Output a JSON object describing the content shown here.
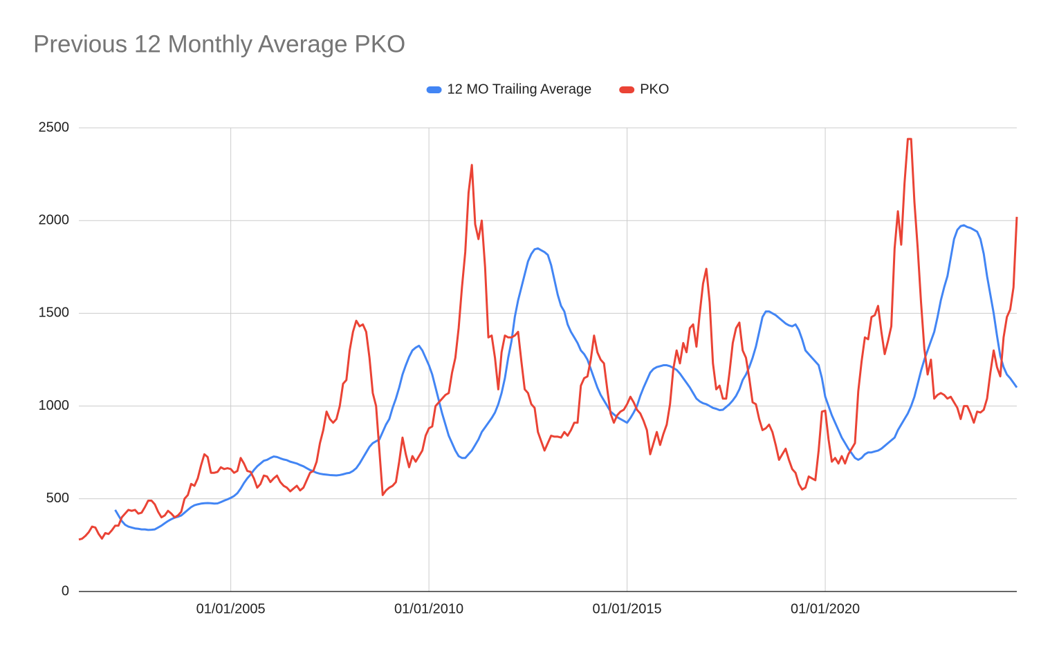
{
  "chart_data": {
    "type": "line",
    "title": "Previous 12 Monthly Average PKO",
    "legend": "top",
    "grid": true,
    "ylim": [
      0,
      2500
    ],
    "yticks": [
      0,
      500,
      1000,
      1500,
      2000,
      2500
    ],
    "xlim": [
      "03/01/2001",
      "11/01/2024"
    ],
    "xticks": [
      "01/01/2005",
      "01/01/2010",
      "01/01/2015",
      "01/01/2020"
    ],
    "x": [
      "03/01/2001",
      "04/01/2001",
      "05/01/2001",
      "06/01/2001",
      "07/01/2001",
      "08/01/2001",
      "09/01/2001",
      "10/01/2001",
      "11/01/2001",
      "12/01/2001",
      "01/01/2002",
      "02/01/2002",
      "03/01/2002",
      "04/01/2002",
      "05/01/2002",
      "06/01/2002",
      "07/01/2002",
      "08/01/2002",
      "09/01/2002",
      "10/01/2002",
      "11/01/2002",
      "12/01/2002",
      "01/01/2003",
      "02/01/2003",
      "03/01/2003",
      "04/01/2003",
      "05/01/2003",
      "06/01/2003",
      "07/01/2003",
      "08/01/2003",
      "09/01/2003",
      "10/01/2003",
      "11/01/2003",
      "12/01/2003",
      "01/01/2004",
      "02/01/2004",
      "03/01/2004",
      "04/01/2004",
      "05/01/2004",
      "06/01/2004",
      "07/01/2004",
      "08/01/2004",
      "09/01/2004",
      "10/01/2004",
      "11/01/2004",
      "12/01/2004",
      "01/01/2005",
      "02/01/2005",
      "03/01/2005",
      "04/01/2005",
      "05/01/2005",
      "06/01/2005",
      "07/01/2005",
      "08/01/2005",
      "09/01/2005",
      "10/01/2005",
      "11/01/2005",
      "12/01/2005",
      "01/01/2006",
      "02/01/2006",
      "03/01/2006",
      "04/01/2006",
      "05/01/2006",
      "06/01/2006",
      "07/01/2006",
      "08/01/2006",
      "09/01/2006",
      "10/01/2006",
      "11/01/2006",
      "12/01/2006",
      "01/01/2007",
      "02/01/2007",
      "03/01/2007",
      "04/01/2007",
      "05/01/2007",
      "06/01/2007",
      "07/01/2007",
      "08/01/2007",
      "09/01/2007",
      "10/01/2007",
      "11/01/2007",
      "12/01/2007",
      "01/01/2008",
      "02/01/2008",
      "03/01/2008",
      "04/01/2008",
      "05/01/2008",
      "06/01/2008",
      "07/01/2008",
      "08/01/2008",
      "09/01/2008",
      "10/01/2008",
      "11/01/2008",
      "12/01/2008",
      "01/01/2009",
      "02/01/2009",
      "03/01/2009",
      "04/01/2009",
      "05/01/2009",
      "06/01/2009",
      "07/01/2009",
      "08/01/2009",
      "09/01/2009",
      "10/01/2009",
      "11/01/2009",
      "12/01/2009",
      "01/01/2010",
      "02/01/2010",
      "03/01/2010",
      "04/01/2010",
      "05/01/2010",
      "06/01/2010",
      "07/01/2010",
      "08/01/2010",
      "09/01/2010",
      "10/01/2010",
      "11/01/2010",
      "12/01/2010",
      "01/01/2011",
      "02/01/2011",
      "03/01/2011",
      "04/01/2011",
      "05/01/2011",
      "06/01/2011",
      "07/01/2011",
      "08/01/2011",
      "09/01/2011",
      "10/01/2011",
      "11/01/2011",
      "12/01/2011",
      "01/01/2012",
      "02/01/2012",
      "03/01/2012",
      "04/01/2012",
      "05/01/2012",
      "06/01/2012",
      "07/01/2012",
      "08/01/2012",
      "09/01/2012",
      "10/01/2012",
      "11/01/2012",
      "12/01/2012",
      "01/01/2013",
      "02/01/2013",
      "03/01/2013",
      "04/01/2013",
      "05/01/2013",
      "06/01/2013",
      "07/01/2013",
      "08/01/2013",
      "09/01/2013",
      "10/01/2013",
      "11/01/2013",
      "12/01/2013",
      "01/01/2014",
      "02/01/2014",
      "03/01/2014",
      "04/01/2014",
      "05/01/2014",
      "06/01/2014",
      "07/01/2014",
      "08/01/2014",
      "09/01/2014",
      "10/01/2014",
      "11/01/2014",
      "12/01/2014",
      "01/01/2015",
      "02/01/2015",
      "03/01/2015",
      "04/01/2015",
      "05/01/2015",
      "06/01/2015",
      "07/01/2015",
      "08/01/2015",
      "09/01/2015",
      "10/01/2015",
      "11/01/2015",
      "12/01/2015",
      "01/01/2016",
      "02/01/2016",
      "03/01/2016",
      "04/01/2016",
      "05/01/2016",
      "06/01/2016",
      "07/01/2016",
      "08/01/2016",
      "09/01/2016",
      "10/01/2016",
      "11/01/2016",
      "12/01/2016",
      "01/01/2017",
      "02/01/2017",
      "03/01/2017",
      "04/01/2017",
      "05/01/2017",
      "06/01/2017",
      "07/01/2017",
      "08/01/2017",
      "09/01/2017",
      "10/01/2017",
      "11/01/2017",
      "12/01/2017",
      "01/01/2018",
      "02/01/2018",
      "03/01/2018",
      "04/01/2018",
      "05/01/2018",
      "06/01/2018",
      "07/01/2018",
      "08/01/2018",
      "09/01/2018",
      "10/01/2018",
      "11/01/2018",
      "12/01/2018",
      "01/01/2019",
      "02/01/2019",
      "03/01/2019",
      "04/01/2019",
      "05/01/2019",
      "06/01/2019",
      "07/01/2019",
      "08/01/2019",
      "09/01/2019",
      "10/01/2019",
      "11/01/2019",
      "12/01/2019",
      "01/01/2020",
      "02/01/2020",
      "03/01/2020",
      "04/01/2020",
      "05/01/2020",
      "06/01/2020",
      "07/01/2020",
      "08/01/2020",
      "09/01/2020",
      "10/01/2020",
      "11/01/2020",
      "12/01/2020",
      "01/01/2021",
      "02/01/2021",
      "03/01/2021",
      "04/01/2021",
      "05/01/2021",
      "06/01/2021",
      "07/01/2021",
      "08/01/2021",
      "09/01/2021",
      "10/01/2021",
      "11/01/2021",
      "12/01/2021",
      "01/01/2022",
      "02/01/2022",
      "03/01/2022",
      "04/01/2022",
      "05/01/2022",
      "06/01/2022",
      "07/01/2022",
      "08/01/2022",
      "09/01/2022",
      "10/01/2022",
      "11/01/2022",
      "12/01/2022",
      "01/01/2023",
      "02/01/2023",
      "03/01/2023",
      "04/01/2023",
      "05/01/2023",
      "06/01/2023",
      "07/01/2023",
      "08/01/2023",
      "09/01/2023",
      "10/01/2023",
      "11/01/2023",
      "12/01/2023",
      "01/01/2024",
      "02/01/2024",
      "03/01/2024",
      "04/01/2024",
      "05/01/2024",
      "06/01/2024",
      "07/01/2024",
      "08/01/2024",
      "09/01/2024",
      "10/01/2024",
      "11/01/2024"
    ],
    "series": [
      {
        "name": "12 MO Trailing Average",
        "color": "#4285f4",
        "values": [
          null,
          null,
          null,
          null,
          null,
          null,
          null,
          null,
          null,
          null,
          null,
          440,
          410,
          380,
          360,
          350,
          345,
          340,
          338,
          335,
          335,
          332,
          333,
          335,
          345,
          355,
          368,
          380,
          390,
          398,
          403,
          410,
          425,
          440,
          455,
          465,
          470,
          474,
          476,
          477,
          476,
          474,
          475,
          482,
          490,
          497,
          505,
          515,
          530,
          555,
          585,
          610,
          630,
          655,
          675,
          690,
          705,
          710,
          720,
          728,
          725,
          718,
          712,
          708,
          700,
          695,
          690,
          682,
          675,
          665,
          655,
          648,
          640,
          635,
          632,
          630,
          628,
          627,
          626,
          628,
          632,
          637,
          640,
          650,
          665,
          690,
          720,
          750,
          780,
          800,
          810,
          820,
          860,
          900,
          930,
          990,
          1040,
          1100,
          1170,
          1220,
          1265,
          1300,
          1315,
          1325,
          1300,
          1260,
          1220,
          1170,
          1100,
          1030,
          960,
          900,
          840,
          800,
          760,
          730,
          720,
          720,
          740,
          760,
          790,
          820,
          860,
          885,
          910,
          935,
          965,
          1010,
          1070,
          1150,
          1260,
          1350,
          1480,
          1570,
          1640,
          1710,
          1780,
          1820,
          1845,
          1850,
          1840,
          1830,
          1815,
          1760,
          1680,
          1600,
          1540,
          1510,
          1440,
          1400,
          1370,
          1340,
          1300,
          1280,
          1250,
          1200,
          1150,
          1100,
          1060,
          1030,
          1000,
          970,
          955,
          940,
          930,
          920,
          910,
          935,
          965,
          1000,
          1055,
          1100,
          1140,
          1180,
          1200,
          1210,
          1215,
          1220,
          1220,
          1215,
          1205,
          1195,
          1175,
          1150,
          1125,
          1100,
          1070,
          1040,
          1025,
          1015,
          1010,
          1000,
          990,
          985,
          978,
          980,
          995,
          1010,
          1030,
          1055,
          1090,
          1140,
          1170,
          1210,
          1260,
          1320,
          1400,
          1480,
          1510,
          1510,
          1500,
          1490,
          1475,
          1460,
          1445,
          1435,
          1430,
          1440,
          1410,
          1360,
          1300,
          1280,
          1260,
          1240,
          1220,
          1150,
          1050,
          1000,
          950,
          910,
          870,
          830,
          800,
          770,
          745,
          720,
          710,
          720,
          740,
          750,
          750,
          755,
          760,
          770,
          785,
          800,
          815,
          830,
          870,
          900,
          930,
          960,
          1000,
          1050,
          1120,
          1190,
          1250,
          1300,
          1350,
          1400,
          1480,
          1570,
          1640,
          1700,
          1800,
          1900,
          1950,
          1970,
          1975,
          1965,
          1960,
          1950,
          1940,
          1900,
          1820,
          1700,
          1600,
          1500,
          1380,
          1270,
          1210,
          1170,
          1150,
          1125,
          1100
        ]
      },
      {
        "name": "PKO",
        "color": "#ea4335",
        "values": [
          280,
          285,
          300,
          320,
          350,
          345,
          310,
          285,
          315,
          310,
          330,
          355,
          355,
          400,
          420,
          440,
          435,
          440,
          420,
          425,
          455,
          490,
          490,
          470,
          430,
          400,
          410,
          435,
          420,
          400,
          410,
          430,
          500,
          520,
          580,
          570,
          610,
          680,
          740,
          725,
          640,
          640,
          645,
          670,
          660,
          665,
          660,
          640,
          650,
          720,
          690,
          650,
          645,
          610,
          560,
          580,
          625,
          620,
          590,
          610,
          625,
          590,
          570,
          560,
          540,
          555,
          570,
          545,
          560,
          600,
          640,
          650,
          700,
          800,
          870,
          970,
          930,
          910,
          930,
          1000,
          1120,
          1140,
          1300,
          1400,
          1460,
          1430,
          1440,
          1400,
          1260,
          1070,
          1000,
          760,
          520,
          545,
          560,
          570,
          590,
          700,
          830,
          740,
          670,
          730,
          700,
          730,
          760,
          840,
          880,
          890,
          1000,
          1020,
          1040,
          1060,
          1070,
          1180,
          1260,
          1420,
          1640,
          1830,
          2150,
          2300,
          1980,
          1900,
          2000,
          1750,
          1370,
          1380,
          1260,
          1090,
          1290,
          1380,
          1370,
          1370,
          1380,
          1400,
          1240,
          1090,
          1070,
          1010,
          990,
          860,
          810,
          760,
          800,
          840,
          835,
          835,
          830,
          860,
          840,
          870,
          910,
          910,
          1110,
          1150,
          1160,
          1250,
          1380,
          1290,
          1250,
          1230,
          1090,
          960,
          910,
          950,
          970,
          980,
          1010,
          1050,
          1020,
          980,
          960,
          920,
          870,
          740,
          800,
          860,
          790,
          850,
          900,
          1010,
          1200,
          1300,
          1230,
          1340,
          1290,
          1420,
          1440,
          1320,
          1500,
          1660,
          1740,
          1560,
          1230,
          1090,
          1110,
          1040,
          1040,
          1180,
          1340,
          1420,
          1450,
          1300,
          1260,
          1150,
          1020,
          1010,
          930,
          870,
          880,
          900,
          860,
          790,
          710,
          740,
          770,
          710,
          660,
          640,
          580,
          550,
          560,
          620,
          610,
          600,
          760,
          970,
          975,
          820,
          700,
          720,
          690,
          730,
          690,
          740,
          770,
          800,
          1080,
          1240,
          1370,
          1360,
          1480,
          1490,
          1540,
          1400,
          1280,
          1350,
          1430,
          1850,
          2050,
          1870,
          2200,
          2440,
          2440,
          2100,
          1850,
          1560,
          1310,
          1170,
          1250,
          1040,
          1060,
          1070,
          1060,
          1040,
          1050,
          1020,
          990,
          930,
          1000,
          1000,
          960,
          910,
          970,
          965,
          980,
          1040,
          1180,
          1300,
          1210,
          1160,
          1370,
          1480,
          1520,
          1640,
          2020
        ]
      }
    ]
  }
}
